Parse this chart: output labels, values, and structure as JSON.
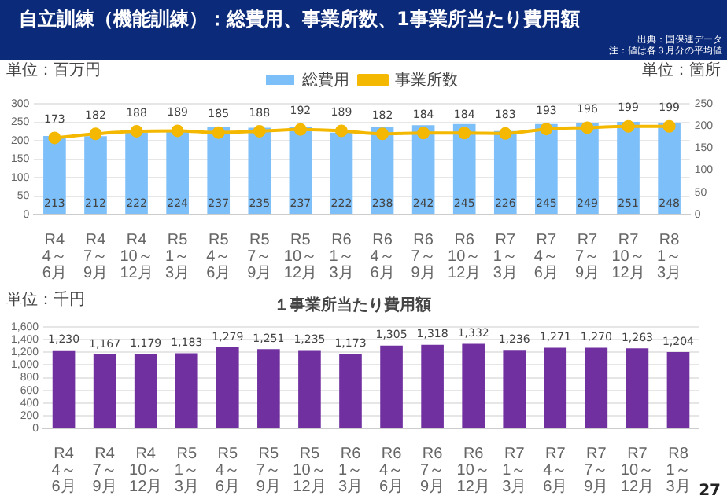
{
  "chart_data": [
    {
      "type": "bar",
      "title": "自立訓練（機能訓練）：総費用、事業所数、1事業所当たり費用額",
      "annotations": [
        "出典：国保連データ",
        "注：値は各３月分の平均値"
      ],
      "categories": [
        "R4\n4～\n6月",
        "R4\n7～\n9月",
        "R4\n10～\n12月",
        "R5\n1～\n3月",
        "R5\n4～\n6月",
        "R5\n7～\n9月",
        "R5\n10～\n12月",
        "R6\n1～\n3月",
        "R6\n4～\n6月",
        "R6\n7～\n9月",
        "R6\n10～\n12月",
        "R7\n1～\n3月",
        "R7\n4～\n6月",
        "R7\n7～\n9月",
        "R7\n10～\n12月",
        "R8\n1～\n3月"
      ],
      "series": [
        {
          "name": "総費用",
          "color": "#7dbff8",
          "values": [
            213,
            212,
            222,
            224,
            237,
            235,
            237,
            222,
            238,
            242,
            245,
            226,
            245,
            249,
            251,
            248
          ]
        },
        {
          "name": "事業所数",
          "type": "line",
          "axis": "y2",
          "color": "#f5b800",
          "values": [
            173,
            182,
            188,
            189,
            185,
            188,
            192,
            189,
            182,
            184,
            184,
            183,
            193,
            196,
            199,
            199
          ]
        }
      ],
      "ylabel": "単位：百万円",
      "y2label": "単位：箇所",
      "ylim": [
        0,
        300
      ],
      "yticks": [
        0,
        50,
        100,
        150,
        200,
        250,
        300
      ],
      "y2lim": [
        0,
        250
      ],
      "y2ticks": [
        0,
        50,
        100,
        150,
        200,
        250
      ],
      "grid": "y",
      "legend": "top",
      "marker": "circle",
      "data_labels": true
    },
    {
      "type": "bar",
      "title": "１事業所当たり費用額",
      "ylabel": "単位：千円",
      "annotations": [
        "27"
      ],
      "categories": [
        "R4\n4～\n6月",
        "R4\n7～\n9月",
        "R4\n10～\n12月",
        "R5\n1～\n3月",
        "R5\n4～\n6月",
        "R5\n7～\n9月",
        "R5\n10～\n12月",
        "R6\n1～\n3月",
        "R6\n4～\n6月",
        "R6\n7～\n9月",
        "R6\n10～\n12月",
        "R7\n1～\n3月",
        "R7\n4～\n6月",
        "R7\n7～\n9月",
        "R7\n10～\n12月",
        "R8\n1～\n3月"
      ],
      "series": [
        {
          "color": "#7030a0",
          "values": [
            1230,
            1167,
            1179,
            1183,
            1279,
            1251,
            1235,
            1173,
            1305,
            1318,
            1332,
            1236,
            1271,
            1270,
            1263,
            1204
          ],
          "value_labels": [
            "1,230",
            "1,167",
            "1,179",
            "1,183",
            "1,279",
            "1,251",
            "1,235",
            "1,173",
            "1,305",
            "1,318",
            "1,332",
            "1,236",
            "1,271",
            "1,270",
            "1,263",
            "1,204"
          ]
        }
      ],
      "ylim": [
        0,
        1600
      ],
      "yticks": [
        0,
        {
          "value": 200,
          "label": "200"
        },
        {
          "value": 400,
          "label": "400"
        },
        {
          "value": 600,
          "label": "600"
        },
        {
          "value": 800,
          "label": "800"
        },
        {
          "value": 1000,
          "label": "1,000"
        },
        {
          "value": 1200,
          "label": "1,200"
        },
        {
          "value": 1400,
          "label": "1,400"
        },
        {
          "value": 1600,
          "label": "1,600"
        }
      ],
      "grid": "y",
      "legend": false
    }
  ]
}
